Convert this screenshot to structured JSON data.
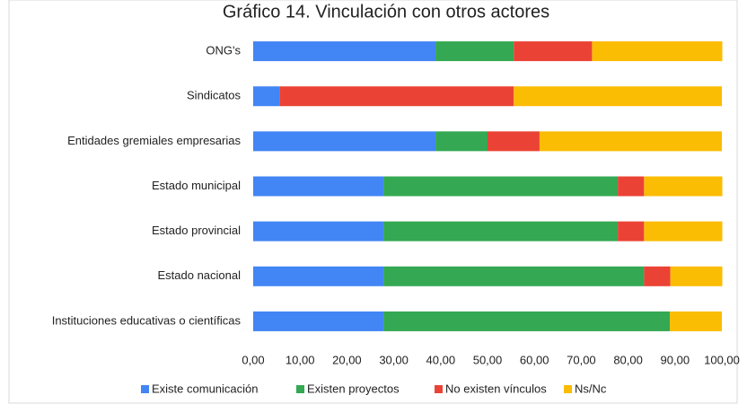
{
  "chart_data": {
    "type": "stacked_bar_horizontal",
    "title": "Gráfico 14. Vinculación con otros actores",
    "categories": [
      "ONG's",
      "Sindicatos",
      "Entidades gremiales empresarias",
      "Estado municipal",
      "Estado provincial",
      "Estado nacional",
      "Instituciones educativas o científicas"
    ],
    "series": [
      {
        "name": "Existe comunicación",
        "color": "#4285f4",
        "values": [
          38.9,
          5.6,
          38.9,
          27.8,
          27.8,
          27.8,
          27.8
        ]
      },
      {
        "name": "Existen proyectos",
        "color": "#34a853",
        "values": [
          16.7,
          0,
          11.1,
          50.0,
          50.0,
          55.6,
          61.1
        ]
      },
      {
        "name": "No existen vínculos",
        "color": "#ea4335",
        "values": [
          16.7,
          50.0,
          11.1,
          5.6,
          5.6,
          5.6,
          0
        ]
      },
      {
        "name": "Ns/Nc",
        "color": "#fbbc04",
        "values": [
          27.8,
          44.4,
          38.9,
          16.7,
          16.7,
          11.1,
          11.1
        ]
      }
    ],
    "xlim": [
      0,
      100
    ],
    "xticks": [
      {
        "value": 0,
        "label": "0,00"
      },
      {
        "value": 10,
        "label": "10,00"
      },
      {
        "value": 20,
        "label": "20,00"
      },
      {
        "value": 30,
        "label": "30,00"
      },
      {
        "value": 40,
        "label": "40,00"
      },
      {
        "value": 50,
        "label": "50,00"
      },
      {
        "value": 60,
        "label": "60,00"
      },
      {
        "value": 70,
        "label": "70,00"
      },
      {
        "value": 80,
        "label": "80,00"
      },
      {
        "value": 90,
        "label": "90,00"
      },
      {
        "value": 100,
        "label": "100,00"
      }
    ],
    "legend": "bottom"
  }
}
